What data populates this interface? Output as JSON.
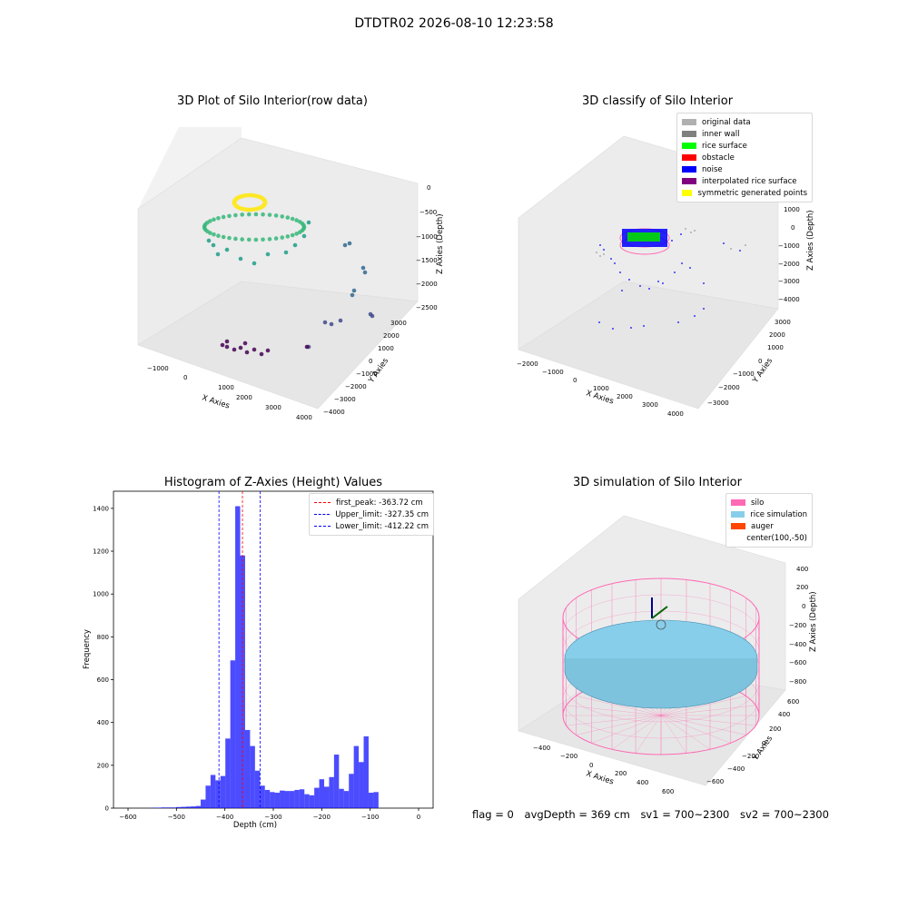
{
  "suptitle": "DTDTR02 2026-08-10 12:23:58",
  "footer": {
    "flag": "flag = 0",
    "avg": "avgDepth = 369 cm",
    "sv1": "sv1 = 700~2300",
    "sv2": "sv2 = 700~2300"
  },
  "chart_data": [
    {
      "type": "scatter",
      "title": "3D Plot of Silo Interior(row data)",
      "xlabel": "X Axies",
      "ylabel": "Y Axies",
      "zlabel": "Z Axies (Depth)",
      "x_ticks": [
        "−1000",
        "0",
        "1000",
        "2000",
        "3000",
        "4000"
      ],
      "y_ticks": [
        "−4000",
        "−3000",
        "−2000",
        "−1000",
        "0",
        "1000",
        "2000",
        "3000"
      ],
      "z_ticks": [
        "0",
        "−500",
        "−1000",
        "−1500",
        "−2000",
        "−2500"
      ],
      "colormap": "viridis"
    },
    {
      "type": "scatter",
      "title": "3D classify of Silo Interior",
      "xlabel": "X Axies",
      "ylabel": "Y Axies",
      "zlabel": "Z Axies (Depth)",
      "x_ticks": [
        "−2000",
        "−1000",
        "0",
        "1000",
        "2000",
        "3000",
        "4000"
      ],
      "y_ticks": [
        "−3000",
        "−2000",
        "−1000",
        "0",
        "1000",
        "2000",
        "3000"
      ],
      "z_ticks": [
        "1000",
        "0",
        "−1000",
        "−2000",
        "−3000",
        "−4000"
      ],
      "z_top_tick": "000",
      "legend": [
        {
          "label": "original data",
          "color": "#b0b0b0"
        },
        {
          "label": "inner wall",
          "color": "#808080"
        },
        {
          "label": "rice surface",
          "color": "#00ff00"
        },
        {
          "label": "obstacle",
          "color": "#ff0000"
        },
        {
          "label": "noise",
          "color": "#0000ff"
        },
        {
          "label": "interpolated rice surface",
          "color": "#800080"
        },
        {
          "label": "symmetric generated points",
          "color": "#ffff00"
        }
      ]
    },
    {
      "type": "bar",
      "title": "Histogram of Z-Axies (Height) Values",
      "xlabel": "Depth (cm)",
      "ylabel": "Frequency",
      "xlim": [
        -630,
        30
      ],
      "ylim": [
        0,
        1480
      ],
      "x_ticks": [
        -600,
        -500,
        -400,
        -300,
        -200,
        -100,
        0
      ],
      "y_ticks": [
        0,
        200,
        400,
        600,
        800,
        1000,
        1200,
        1400
      ],
      "bin_start": -552,
      "bin_width": 10.2,
      "values": [
        2,
        2,
        3,
        3,
        3,
        5,
        6,
        7,
        8,
        10,
        40,
        105,
        155,
        130,
        150,
        325,
        690,
        1410,
        1180,
        365,
        290,
        175,
        105,
        85,
        75,
        72,
        82,
        80,
        80,
        85,
        88,
        65,
        60,
        95,
        135,
        100,
        145,
        250,
        90,
        80,
        160,
        290,
        215,
        335,
        72,
        75
      ],
      "bar_color": "#0000ff",
      "lines": [
        {
          "label": "first_peak: -363.72 cm",
          "value": -363.72,
          "color": "#ff0000"
        },
        {
          "label": "Upper_limit: -327.35 cm",
          "value": -327.35,
          "color": "#0000ff"
        },
        {
          "label": "Lower_limit: -412.22 cm",
          "value": -412.22,
          "color": "#0000ff"
        }
      ]
    },
    {
      "type": "scatter",
      "title": "3D simulation of Silo Interior",
      "xlabel": "X Axies",
      "ylabel": "Y Axies",
      "zlabel": "Z Axies (Depth)",
      "x_ticks": [
        "−400",
        "−200",
        "0",
        "200",
        "400",
        "600"
      ],
      "y_ticks": [
        "−600",
        "−400",
        "−200",
        "0",
        "200",
        "400",
        "600"
      ],
      "z_ticks": [
        "400",
        "200",
        "0",
        "−200",
        "−400",
        "−600",
        "−800"
      ],
      "legend": [
        {
          "label": "silo",
          "color": "#ff69b4"
        },
        {
          "label": "rice simulation",
          "color": "#87ceeb"
        },
        {
          "label": "auger",
          "color": "#ff4500"
        },
        {
          "label": "center(100,-50)",
          "color": ""
        }
      ]
    }
  ]
}
